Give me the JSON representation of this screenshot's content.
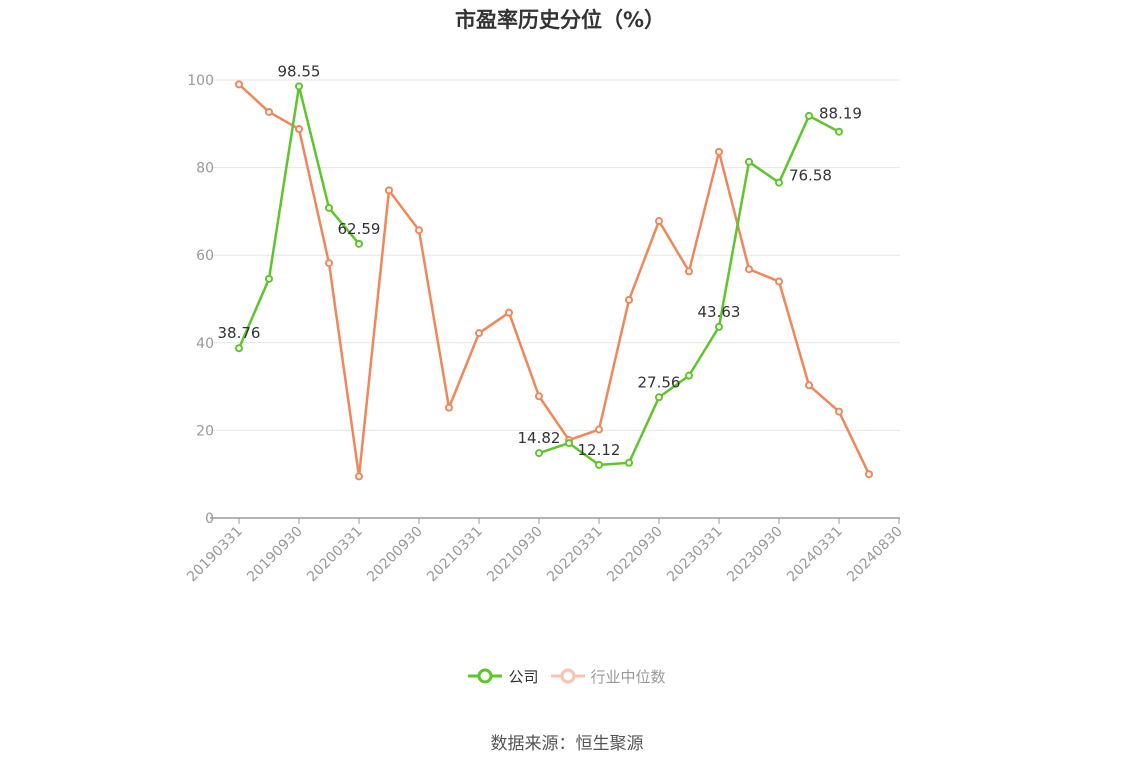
{
  "chart_data": {
    "type": "line",
    "title": "市盈率历史分位（%）",
    "xlabel": "",
    "ylabel": "",
    "ylim": [
      0,
      100
    ],
    "yticks": [
      0,
      20,
      40,
      60,
      80,
      100
    ],
    "grid": true,
    "legend_position": "bottom",
    "x": [
      "20190331",
      "20190630",
      "20190930",
      "20191231",
      "20200331",
      "20200630",
      "20200930",
      "20201231",
      "20210331",
      "20210630",
      "20210930",
      "20211231",
      "20220331",
      "20220630",
      "20220930",
      "20221231",
      "20230331",
      "20230630",
      "20230930",
      "20231231",
      "20240331",
      "20240630",
      "20240830"
    ],
    "xtick_labels": [
      "20190331",
      "20190930",
      "20200331",
      "20200930",
      "20210331",
      "20210930",
      "20220331",
      "20220930",
      "20230331",
      "20230930",
      "20240331",
      "20240830"
    ],
    "series": [
      {
        "name": "公司",
        "color": "#5ec52a",
        "values": [
          38.76,
          54.6,
          98.55,
          70.8,
          62.59,
          null,
          null,
          null,
          null,
          null,
          14.82,
          17.1,
          12.12,
          12.6,
          27.56,
          32.5,
          43.63,
          81.3,
          76.58,
          91.8,
          88.19,
          null,
          null
        ],
        "data_labels": [
          {
            "index": 0,
            "text": "38.76"
          },
          {
            "index": 2,
            "text": "98.55"
          },
          {
            "index": 4,
            "text": "62.59"
          },
          {
            "index": 10,
            "text": "14.82"
          },
          {
            "index": 12,
            "text": "12.12"
          },
          {
            "index": 14,
            "text": "27.56"
          },
          {
            "index": 16,
            "text": "43.63"
          },
          {
            "index": 18,
            "text": "76.58"
          },
          {
            "index": 20,
            "text": "88.19"
          }
        ]
      },
      {
        "name": "行业中位数",
        "color": "#f0875a",
        "values": [
          99.0,
          92.7,
          88.8,
          58.2,
          9.5,
          74.8,
          65.7,
          25.2,
          42.2,
          46.9,
          27.8,
          17.8,
          20.2,
          49.8,
          67.8,
          56.3,
          83.6,
          56.8,
          54.0,
          30.3,
          24.3,
          10.0,
          null
        ]
      }
    ],
    "colors": {
      "axis": "#999999",
      "grid": "#e6e6e6",
      "tick_text": "#999999",
      "label_text": "#333333",
      "legend_inactive": "#999999"
    },
    "source": "数据来源：恒生聚源"
  }
}
